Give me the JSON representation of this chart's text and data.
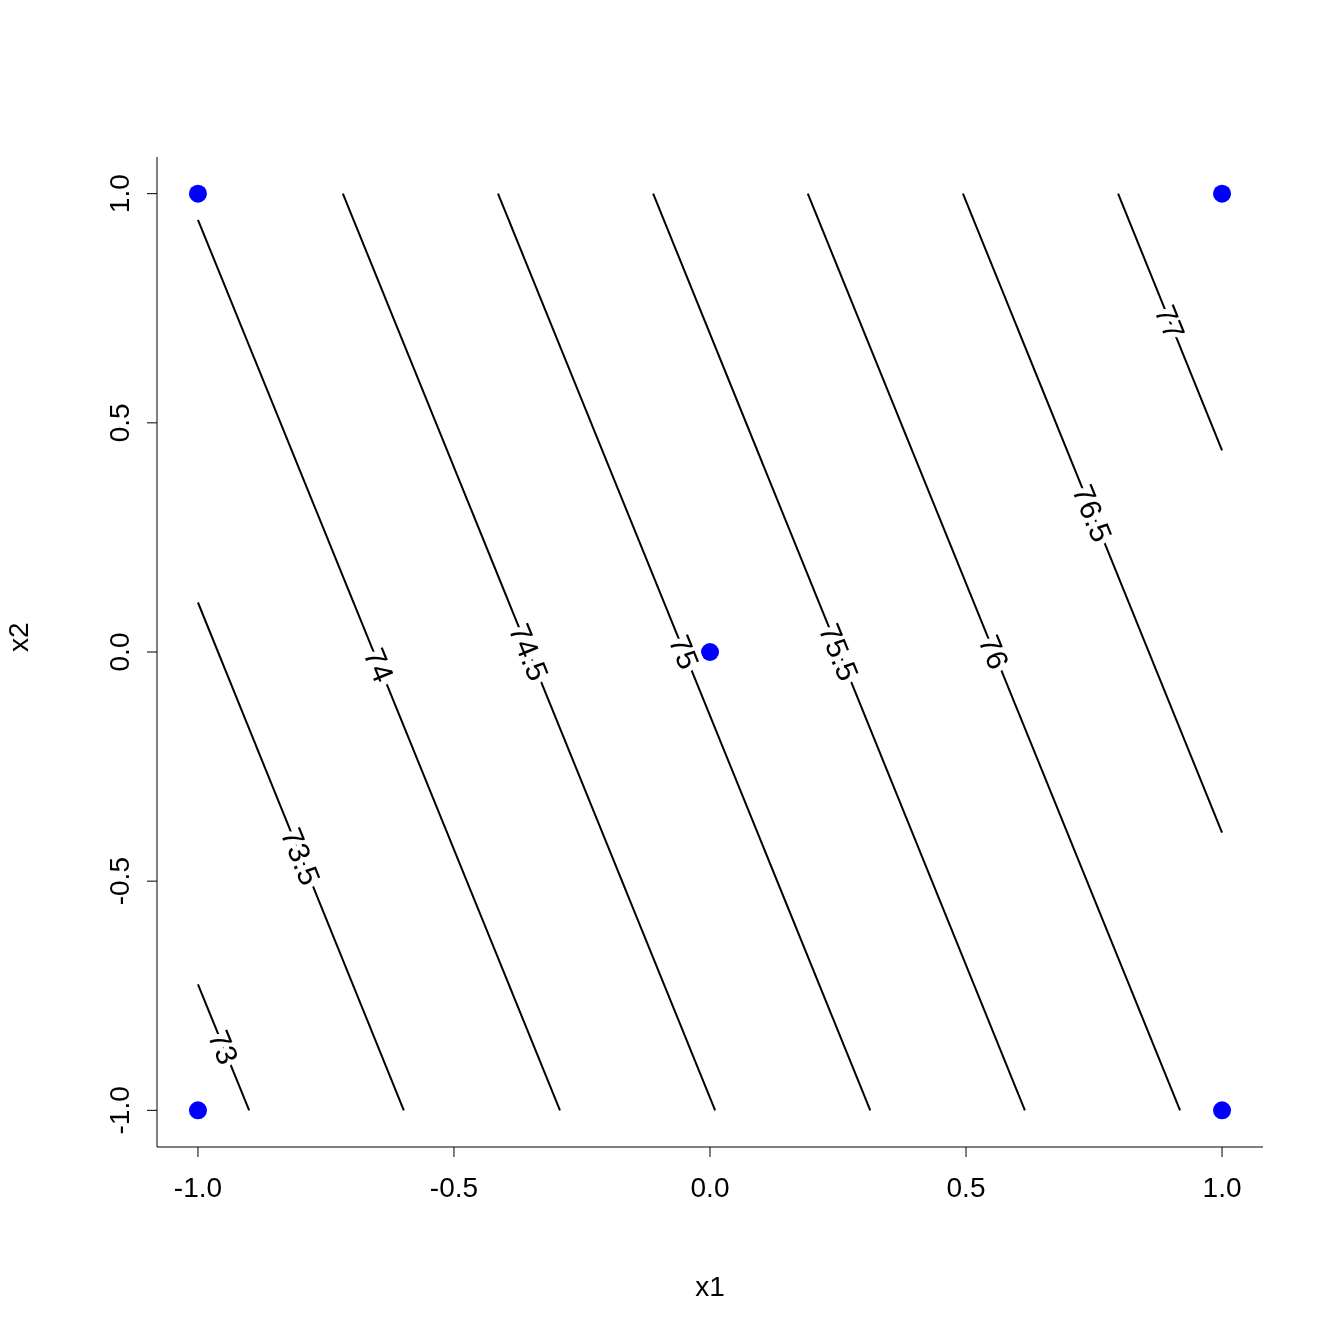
{
  "chart_data": {
    "type": "line",
    "xlabel": "x1",
    "ylabel": "x2",
    "xlim": [
      -1.08,
      1.08
    ],
    "ylim": [
      -1.08,
      1.08
    ],
    "xticks": [
      {
        "value": -1,
        "label": "-1.0"
      },
      {
        "value": -0.5,
        "label": "-0.5"
      },
      {
        "value": 0,
        "label": "0.0"
      },
      {
        "value": 0.5,
        "label": "0.5"
      },
      {
        "value": 1,
        "label": "1.0"
      }
    ],
    "yticks": [
      {
        "value": -1,
        "label": "-1.0"
      },
      {
        "value": -0.5,
        "label": "-0.5"
      },
      {
        "value": 0,
        "label": "0.0"
      },
      {
        "value": 0.5,
        "label": "0.5"
      },
      {
        "value": 1,
        "label": "1.0"
      }
    ],
    "line_style": "solid",
    "series": [
      {
        "name": "73",
        "color": "#000000",
        "x": [
          -1,
          -0.9
        ],
        "values": [
          -0.725,
          -1
        ]
      },
      {
        "name": "73.5",
        "color": "#000000",
        "x": [
          -1,
          -0.598
        ],
        "values": [
          0.108,
          -1
        ]
      },
      {
        "name": "74",
        "color": "#000000",
        "x": [
          -1,
          -0.293
        ],
        "values": [
          0.943,
          -1
        ]
      },
      {
        "name": "74.5",
        "color": "#000000",
        "x": [
          -0.717,
          0.01
        ],
        "values": [
          1,
          -1
        ]
      },
      {
        "name": "75",
        "color": "#000000",
        "x": [
          -0.414,
          0.313
        ],
        "values": [
          1,
          -1
        ]
      },
      {
        "name": "75.5",
        "color": "#000000",
        "x": [
          -0.111,
          0.615
        ],
        "values": [
          1,
          -1
        ]
      },
      {
        "name": "76",
        "color": "#000000",
        "x": [
          0.191,
          0.918
        ],
        "values": [
          1,
          -1
        ]
      },
      {
        "name": "76.5",
        "color": "#000000",
        "x": [
          0.494,
          1
        ],
        "values": [
          1,
          -0.394
        ]
      },
      {
        "name": "77",
        "color": "#000000",
        "x": [
          0.797,
          1
        ],
        "values": [
          1,
          0.44
        ]
      },
      {
        "type": "scatter",
        "color": "#0000ff",
        "marker": "circle",
        "x": [
          -1,
          1,
          0,
          -1,
          1
        ],
        "values": [
          1,
          1,
          0,
          -1,
          -1
        ]
      }
    ]
  }
}
